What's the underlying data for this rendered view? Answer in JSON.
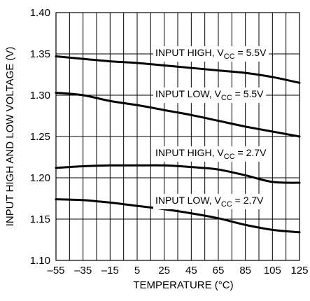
{
  "chart_data": {
    "type": "line",
    "xlabel": "TEMPERATURE (°C)",
    "ylabel": "INPUT HIGH AND LOW VOLTAGE (V)",
    "xlim": [
      -55,
      125
    ],
    "ylim": [
      1.1,
      1.4
    ],
    "xticks": [
      -55,
      -35,
      -15,
      5,
      25,
      45,
      65,
      85,
      105,
      125
    ],
    "xtick_labels": [
      "–55",
      "–35",
      "–15",
      "5",
      "25",
      "45",
      "65",
      "85",
      "105",
      "125"
    ],
    "yticks": [
      1.1,
      1.15,
      1.2,
      1.25,
      1.3,
      1.35,
      1.4
    ],
    "ytick_labels": [
      "1.10",
      "1.15",
      "1.20",
      "1.25",
      "1.30",
      "1.35",
      "1.40"
    ],
    "x_minor_step": 10,
    "grid": true,
    "series": [
      {
        "label_main": "INPUT HIGH, V",
        "label_sub": "CC",
        "label_tail": " = 5.5V",
        "x": [
          -55,
          -35,
          -15,
          5,
          25,
          45,
          65,
          85,
          105,
          125
        ],
        "y": [
          1.347,
          1.344,
          1.341,
          1.339,
          1.336,
          1.333,
          1.33,
          1.327,
          1.322,
          1.315
        ]
      },
      {
        "label_main": "INPUT LOW, V",
        "label_sub": "CC",
        "label_tail": " = 5.5V",
        "x": [
          -55,
          -35,
          -15,
          5,
          25,
          45,
          65,
          85,
          105,
          125
        ],
        "y": [
          1.303,
          1.3,
          1.293,
          1.288,
          1.282,
          1.276,
          1.269,
          1.262,
          1.256,
          1.25
        ]
      },
      {
        "label_main": "INPUT HIGH, V",
        "label_sub": "CC",
        "label_tail": " = 2.7V",
        "x": [
          -55,
          -35,
          -15,
          5,
          25,
          45,
          65,
          85,
          105,
          125
        ],
        "y": [
          1.212,
          1.214,
          1.215,
          1.215,
          1.215,
          1.213,
          1.21,
          1.203,
          1.195,
          1.194
        ]
      },
      {
        "label_main": "INPUT LOW, V",
        "label_sub": "CC",
        "label_tail": " = 2.7V",
        "x": [
          -55,
          -35,
          -15,
          5,
          25,
          45,
          65,
          85,
          105,
          125
        ],
        "y": [
          1.174,
          1.173,
          1.17,
          1.166,
          1.162,
          1.157,
          1.151,
          1.143,
          1.137,
          1.134
        ]
      }
    ]
  }
}
